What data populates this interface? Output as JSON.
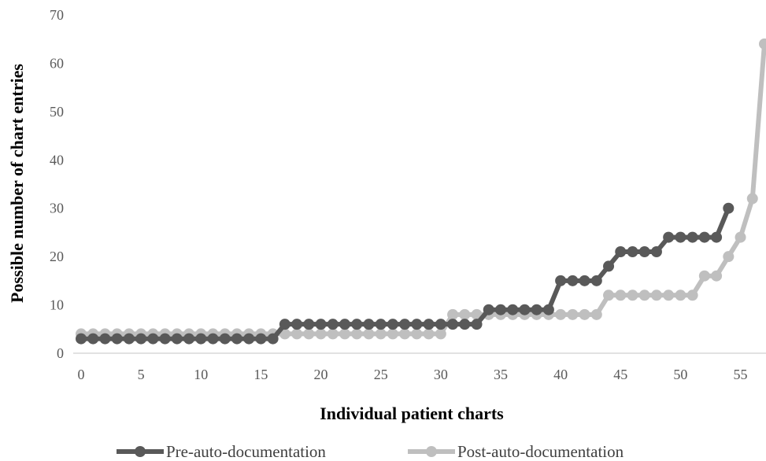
{
  "chart_data": {
    "type": "line",
    "title": "",
    "xlabel": "Individual patient charts",
    "ylabel": "Possible number of chart entries",
    "xlim": [
      0,
      57
    ],
    "ylim": [
      0,
      70
    ],
    "xticks": [
      0,
      5,
      10,
      15,
      20,
      25,
      30,
      35,
      40,
      45,
      50,
      55
    ],
    "yticks": [
      0,
      10,
      20,
      30,
      40,
      50,
      60,
      70
    ],
    "grid": false,
    "legend_position": "bottom",
    "series": [
      {
        "name": "Pre-auto-documentation",
        "color": "#595959",
        "x": [
          0,
          1,
          2,
          3,
          4,
          5,
          6,
          7,
          8,
          9,
          10,
          11,
          12,
          13,
          14,
          15,
          16,
          17,
          18,
          19,
          20,
          21,
          22,
          23,
          24,
          25,
          26,
          27,
          28,
          29,
          30,
          31,
          32,
          33,
          34,
          35,
          36,
          37,
          38,
          39,
          40,
          41,
          42,
          43,
          44,
          45,
          46,
          47,
          48,
          49,
          50,
          51,
          52,
          53,
          54
        ],
        "values": [
          3,
          3,
          3,
          3,
          3,
          3,
          3,
          3,
          3,
          3,
          3,
          3,
          3,
          3,
          3,
          3,
          3,
          6,
          6,
          6,
          6,
          6,
          6,
          6,
          6,
          6,
          6,
          6,
          6,
          6,
          6,
          6,
          6,
          6,
          9,
          9,
          9,
          9,
          9,
          9,
          15,
          15,
          15,
          15,
          18,
          21,
          21,
          21,
          21,
          24,
          24,
          24,
          24,
          24,
          30
        ]
      },
      {
        "name": "Post-auto-documentation",
        "color": "#bfbfbf",
        "x": [
          0,
          1,
          2,
          3,
          4,
          5,
          6,
          7,
          8,
          9,
          10,
          11,
          12,
          13,
          14,
          15,
          16,
          17,
          18,
          19,
          20,
          21,
          22,
          23,
          24,
          25,
          26,
          27,
          28,
          29,
          30,
          31,
          32,
          33,
          34,
          35,
          36,
          37,
          38,
          39,
          40,
          41,
          42,
          43,
          44,
          45,
          46,
          47,
          48,
          49,
          50,
          51,
          52,
          53,
          54,
          55,
          56,
          57
        ],
        "values": [
          4,
          4,
          4,
          4,
          4,
          4,
          4,
          4,
          4,
          4,
          4,
          4,
          4,
          4,
          4,
          4,
          4,
          4,
          4,
          4,
          4,
          4,
          4,
          4,
          4,
          4,
          4,
          4,
          4,
          4,
          4,
          8,
          8,
          8,
          8,
          8,
          8,
          8,
          8,
          8,
          8,
          8,
          8,
          8,
          12,
          12,
          12,
          12,
          12,
          12,
          12,
          12,
          16,
          16,
          20,
          24,
          32,
          64
        ]
      }
    ]
  }
}
